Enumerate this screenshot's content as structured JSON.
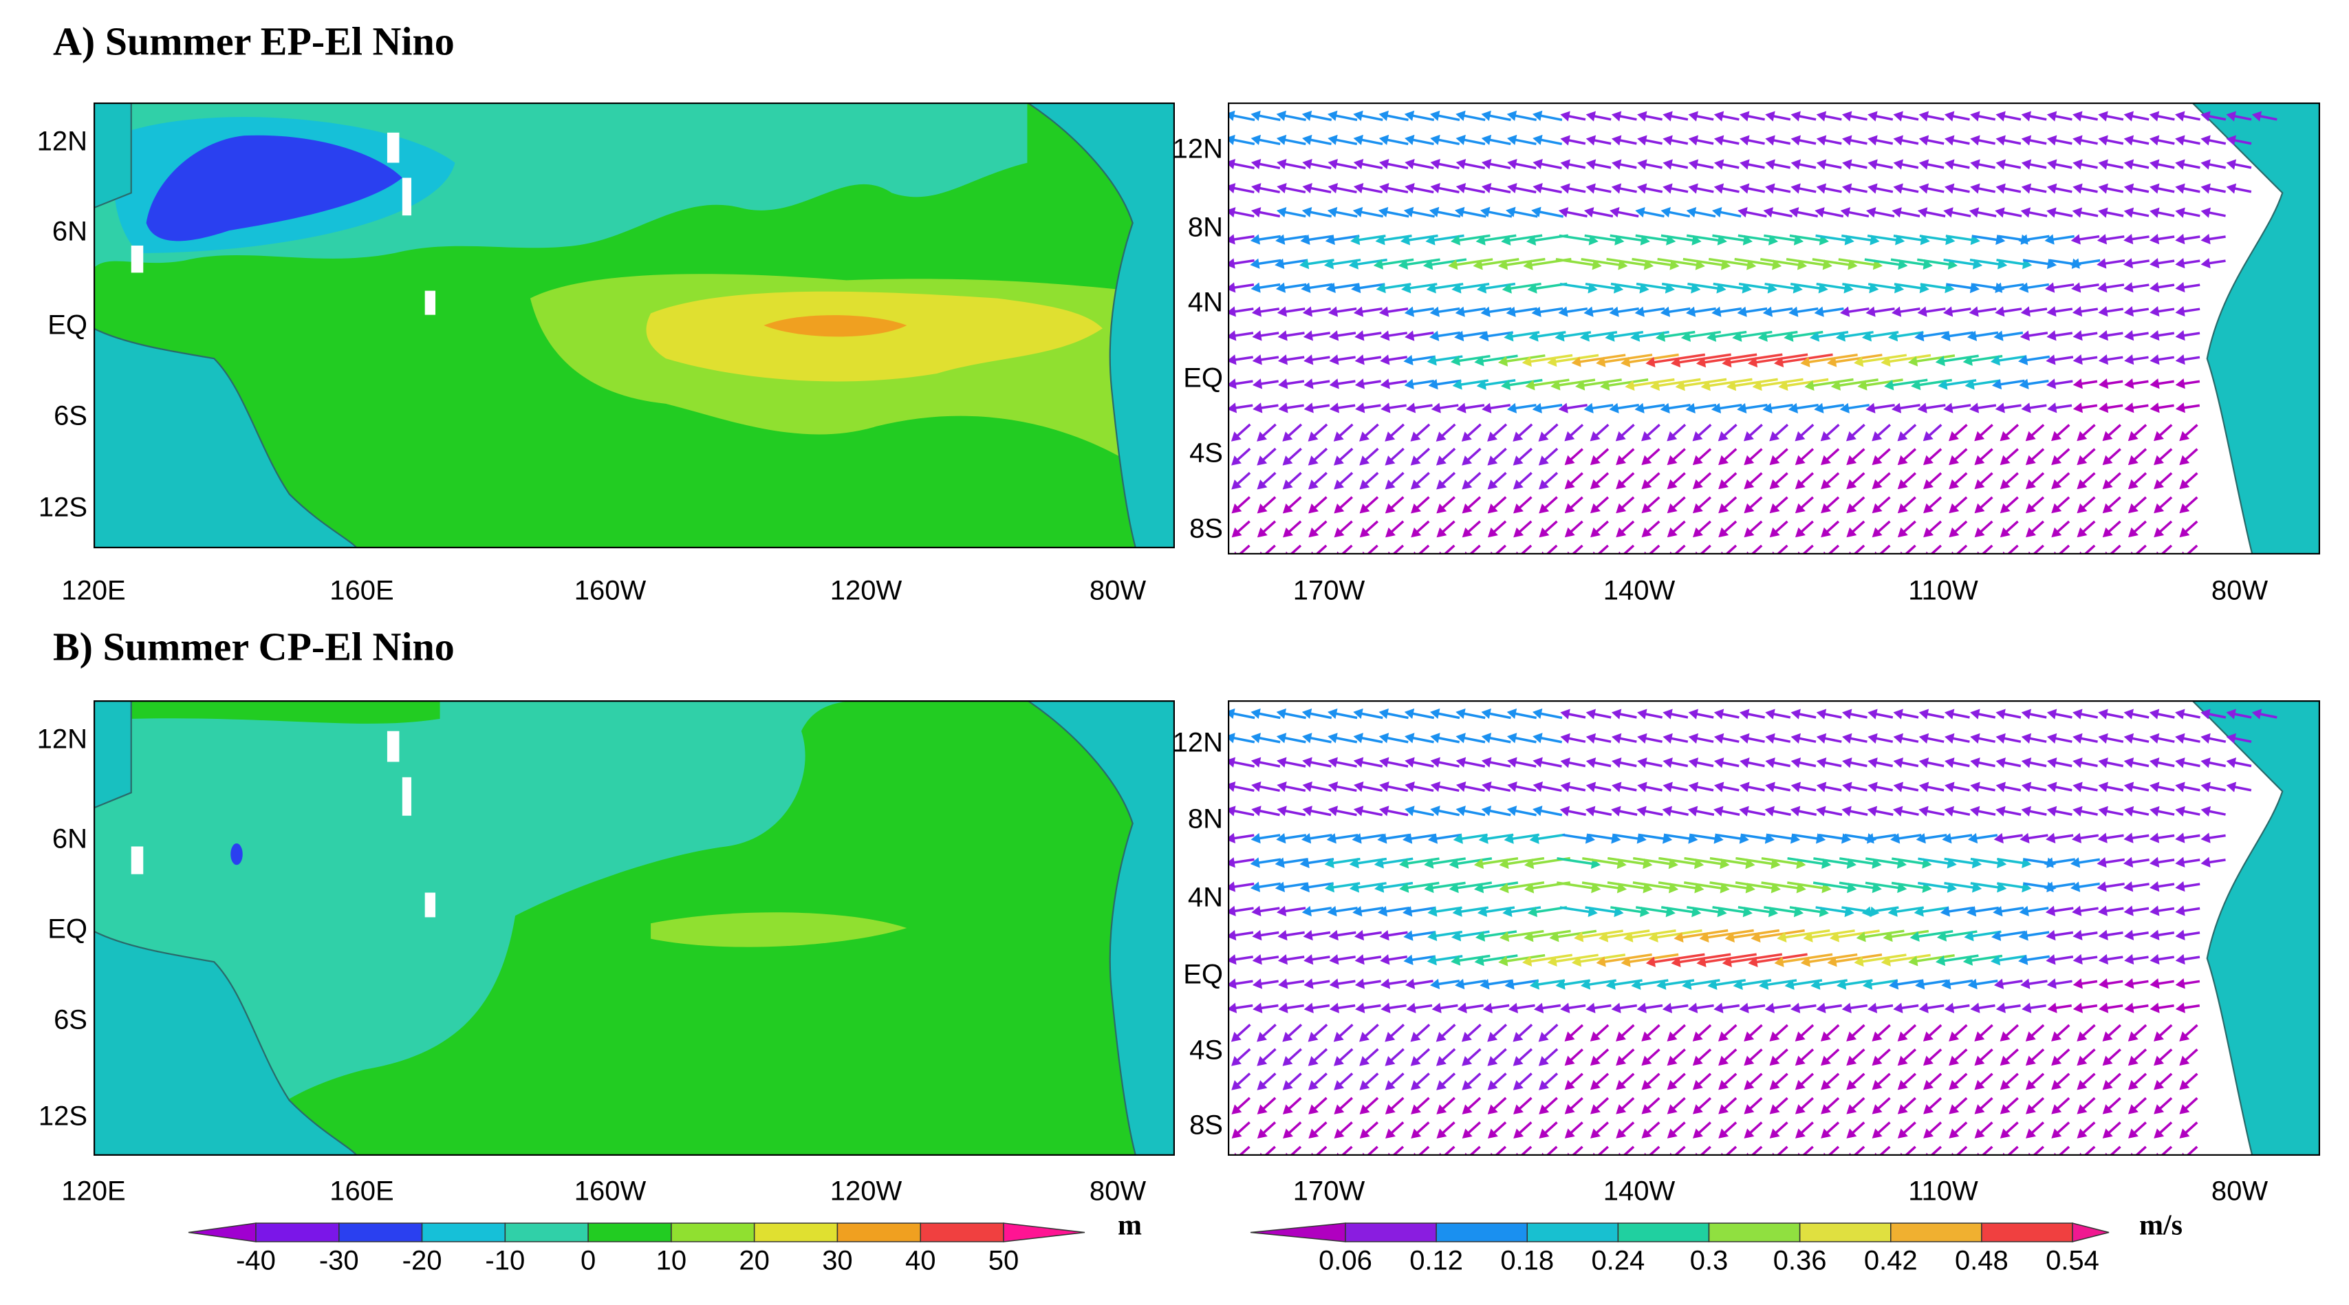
{
  "panels": [
    {
      "title": "A) Summer EP-El Nino",
      "left_map": {
        "lat_ticks": [
          "12N",
          "6N",
          "EQ",
          "6S",
          "12S"
        ],
        "lon_ticks": [
          "120E",
          "160E",
          "160W",
          "120W",
          "80W"
        ]
      },
      "right_map": {
        "lat_ticks": [
          "12N",
          "8N",
          "4N",
          "EQ",
          "4S",
          "8S"
        ],
        "lon_ticks": [
          "170W",
          "140W",
          "110W",
          "80W"
        ]
      }
    },
    {
      "title": "B) Summer CP-El Nino",
      "left_map": {
        "lat_ticks": [
          "12N",
          "6N",
          "EQ",
          "6S",
          "12S"
        ],
        "lon_ticks": [
          "120E",
          "160E",
          "160W",
          "120W",
          "80W"
        ]
      },
      "right_map": {
        "lat_ticks": [
          "12N",
          "8N",
          "4N",
          "EQ",
          "4S",
          "8S"
        ],
        "lon_ticks": [
          "170W",
          "140W",
          "110W",
          "80W"
        ]
      }
    }
  ],
  "colorbars": [
    {
      "unit": "m",
      "ticks": [
        -40,
        -30,
        -20,
        -10,
        0,
        10,
        20,
        30,
        40,
        50
      ],
      "colors": [
        "#a000d0",
        "#7b16e8",
        "#2a40f0",
        "#16c0d8",
        "#30d0a8",
        "#22cc22",
        "#90e030",
        "#e0e030",
        "#f0a020",
        "#f04040",
        "#ff1493"
      ]
    },
    {
      "unit": "m/s",
      "ticks": [
        0.06,
        0.12,
        0.18,
        0.24,
        0.3,
        0.36,
        0.42,
        0.48,
        0.54
      ],
      "colors": [
        "#b000c0",
        "#8a1de0",
        "#1a90f0",
        "#18c0d0",
        "#20d0a0",
        "#90e040",
        "#e0e040",
        "#f0b030",
        "#f04040",
        "#f01890"
      ]
    }
  ]
}
